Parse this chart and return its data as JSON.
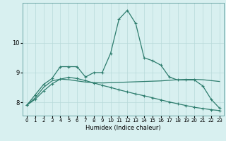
{
  "xlabel": "Humidex (Indice chaleur)",
  "x": [
    0,
    1,
    2,
    3,
    4,
    5,
    6,
    7,
    8,
    9,
    10,
    11,
    12,
    13,
    14,
    15,
    16,
    17,
    18,
    19,
    20,
    21,
    22,
    23
  ],
  "line1": [
    7.9,
    8.25,
    8.6,
    8.8,
    9.2,
    9.2,
    9.2,
    8.85,
    9.0,
    9.0,
    9.65,
    10.8,
    11.1,
    10.65,
    9.5,
    9.4,
    9.25,
    8.85,
    8.75,
    8.75,
    8.75,
    8.55,
    8.1,
    7.8
  ],
  "line2": [
    7.9,
    8.15,
    8.5,
    8.72,
    8.78,
    8.76,
    8.72,
    8.68,
    8.66,
    8.65,
    8.66,
    8.67,
    8.68,
    8.69,
    8.7,
    8.71,
    8.72,
    8.74,
    8.76,
    8.77,
    8.77,
    8.76,
    8.73,
    8.7
  ],
  "line3": [
    7.9,
    8.1,
    8.38,
    8.62,
    8.78,
    8.84,
    8.8,
    8.73,
    8.65,
    8.57,
    8.5,
    8.42,
    8.35,
    8.28,
    8.22,
    8.15,
    8.08,
    8.01,
    7.95,
    7.89,
    7.83,
    7.79,
    7.75,
    7.72
  ],
  "line_color": "#2e7d6e",
  "bg_color": "#d8f0f0",
  "grid_color": "#b8dada",
  "yticks": [
    8,
    9,
    10
  ],
  "xticks": [
    0,
    1,
    2,
    3,
    4,
    5,
    6,
    7,
    8,
    9,
    10,
    11,
    12,
    13,
    14,
    15,
    16,
    17,
    18,
    19,
    20,
    21,
    22,
    23
  ],
  "ylim": [
    7.55,
    11.35
  ],
  "xlim": [
    -0.5,
    23.5
  ]
}
